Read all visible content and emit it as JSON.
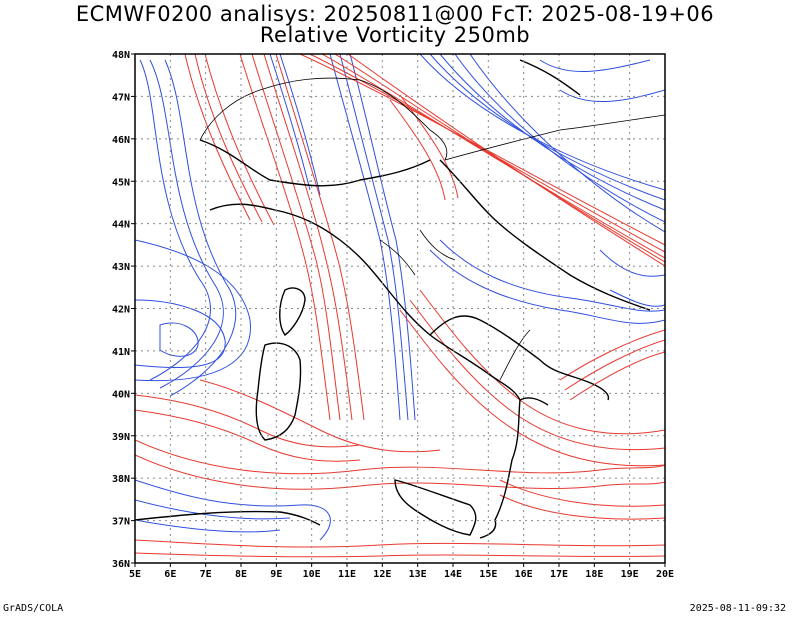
{
  "header": {
    "line1": "ECMWF0200 analisys: 20250811@00 FcT: 2025-08-19+06",
    "line2": "Relative Vorticity 250mb"
  },
  "footer": {
    "left": "GrADS/COLA",
    "right": "2025-08-11-09:32"
  },
  "map": {
    "lon_range": [
      5,
      20
    ],
    "lat_range": [
      36,
      48
    ],
    "lon_ticks": [
      "5E",
      "6E",
      "7E",
      "8E",
      "9E",
      "10E",
      "11E",
      "12E",
      "13E",
      "14E",
      "15E",
      "16E",
      "17E",
      "18E",
      "19E",
      "20E"
    ],
    "lat_ticks": [
      "36N",
      "37N",
      "38N",
      "39N",
      "40N",
      "41N",
      "42N",
      "43N",
      "44N",
      "45N",
      "46N",
      "47N",
      "48N"
    ],
    "grid": "dotted",
    "colors": {
      "positive": "#e8392f",
      "negative": "#2f4fe0",
      "coast": "#000000",
      "grid": "#888888"
    }
  }
}
